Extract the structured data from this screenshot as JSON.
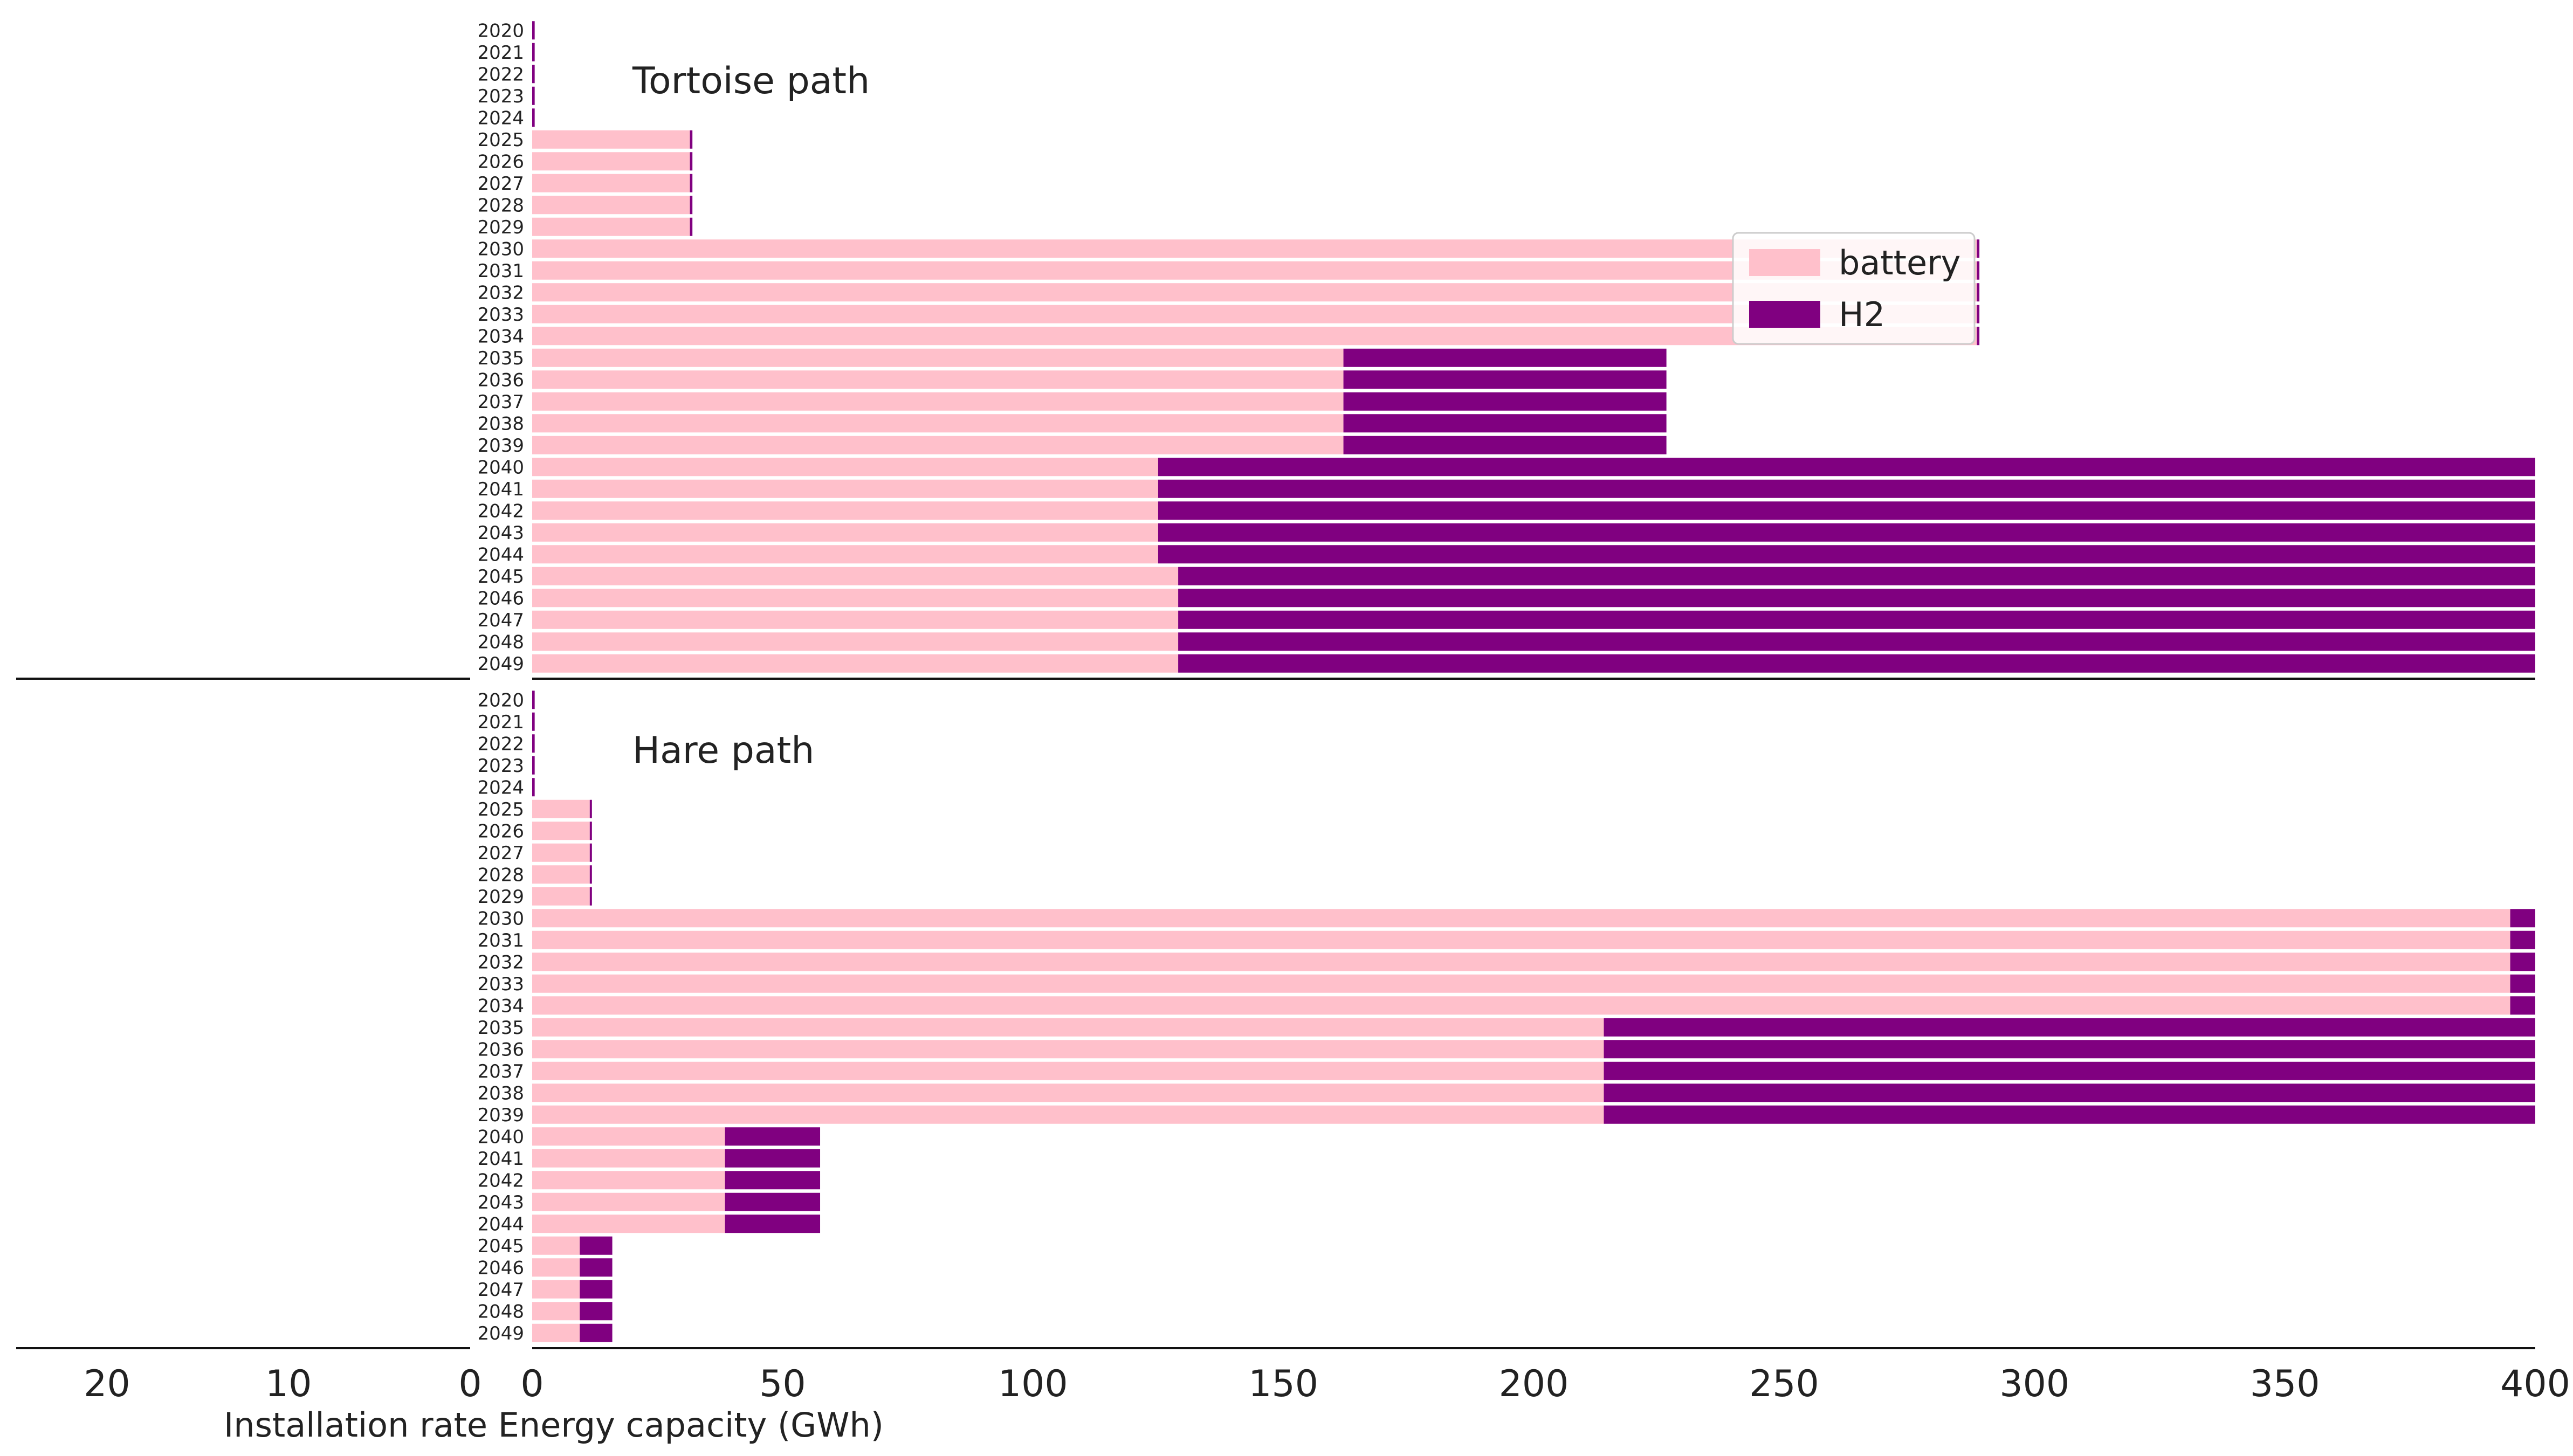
{
  "chart_data": {
    "type": "bar",
    "orientation": "horizontal",
    "stacked": true,
    "xlabel": "Installation rate Energy capacity (GWh)",
    "xlim": [
      0,
      400
    ],
    "xticks": [
      0,
      50,
      100,
      150,
      200,
      250,
      300,
      350,
      400
    ],
    "left_axis": {
      "xlim": [
        25,
        0
      ],
      "xticks": [
        20,
        10,
        0
      ]
    },
    "legend": {
      "placement": "top-right",
      "entries": [
        "battery",
        "H2"
      ]
    },
    "colors": {
      "battery": "#ffc0cb",
      "H2": "#800080"
    },
    "categories": [
      "2020",
      "2021",
      "2022",
      "2023",
      "2024",
      "2025",
      "2026",
      "2027",
      "2028",
      "2029",
      "2030",
      "2031",
      "2032",
      "2033",
      "2034",
      "2035",
      "2036",
      "2037",
      "2038",
      "2039",
      "2040",
      "2041",
      "2042",
      "2043",
      "2044",
      "2045",
      "2046",
      "2047",
      "2048",
      "2049"
    ],
    "panels": [
      {
        "title": "Tortoise path",
        "series": [
          {
            "name": "battery",
            "values": [
              0,
              0,
              0,
              0,
              0,
              31.5,
              31.5,
              31.5,
              31.5,
              31.5,
              288.5,
              288.5,
              288.5,
              288.5,
              288.5,
              162,
              162,
              162,
              162,
              162,
              125,
              125,
              125,
              125,
              125,
              129,
              129,
              129,
              129,
              129
            ]
          },
          {
            "name": "H2",
            "values": [
              0.5,
              0.5,
              0.5,
              0.5,
              0.5,
              0.5,
              0.5,
              0.5,
              0.5,
              0.5,
              0.5,
              0.5,
              0.5,
              0.5,
              0.5,
              64.5,
              64.5,
              64.5,
              64.5,
              64.5,
              275,
              275,
              275,
              275,
              275,
              271,
              271,
              271,
              271,
              271
            ]
          }
        ]
      },
      {
        "title": "Hare path",
        "series": [
          {
            "name": "battery",
            "values": [
              0,
              0,
              0,
              0,
              0,
              11.5,
              11.5,
              11.5,
              11.5,
              11.5,
              395,
              395,
              395,
              395,
              395,
              214,
              214,
              214,
              214,
              214,
              38.5,
              38.5,
              38.5,
              38.5,
              38.5,
              9.5,
              9.5,
              9.5,
              9.5,
              9.5
            ]
          },
          {
            "name": "H2",
            "values": [
              0.5,
              0.5,
              0.5,
              0.5,
              0.5,
              0.3,
              0.3,
              0.3,
              0.3,
              0.3,
              5,
              5,
              5,
              5,
              5,
              186,
              186,
              186,
              186,
              186,
              19,
              19,
              19,
              19,
              19,
              6.5,
              6.5,
              6.5,
              6.5,
              6.5
            ]
          }
        ]
      }
    ]
  }
}
